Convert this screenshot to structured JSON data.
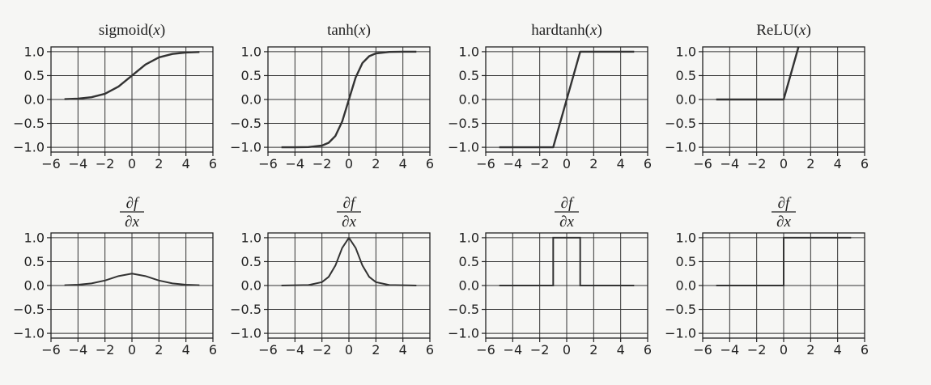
{
  "chart_data": [
    {
      "type": "line",
      "title": "sigmoid(x)",
      "title_fn": "sigmoid",
      "title_arg": "x",
      "xlim": [
        -6,
        6
      ],
      "ylim": [
        -1.1,
        1.1
      ],
      "grid": true,
      "xticks": [
        "−6",
        "−4",
        "−2",
        "0",
        "2",
        "4",
        "6"
      ],
      "yticks": [
        "1.0",
        "0.5",
        "0.0",
        "−0.5",
        "−1.0"
      ],
      "series": [
        {
          "x": [
            -5,
            -4,
            -3,
            -2,
            -1,
            0,
            1,
            2,
            3,
            4,
            5
          ],
          "y": [
            0.007,
            0.018,
            0.047,
            0.119,
            0.269,
            0.5,
            0.731,
            0.881,
            0.953,
            0.982,
            0.993
          ]
        }
      ]
    },
    {
      "type": "line",
      "title": "tanh(x)",
      "title_fn": "tanh",
      "title_arg": "x",
      "xlim": [
        -6,
        6
      ],
      "ylim": [
        -1.1,
        1.1
      ],
      "grid": true,
      "xticks": [
        "−6",
        "−4",
        "−2",
        "0",
        "2",
        "4",
        "6"
      ],
      "yticks": [
        "1.0",
        "0.5",
        "0.0",
        "−0.5",
        "−1.0"
      ],
      "series": [
        {
          "x": [
            -5,
            -4,
            -3,
            -2,
            -1.5,
            -1,
            -0.5,
            0,
            0.5,
            1,
            1.5,
            2,
            3,
            4,
            5
          ],
          "y": [
            -1.0,
            -0.999,
            -0.995,
            -0.964,
            -0.905,
            -0.762,
            -0.462,
            0,
            0.462,
            0.762,
            0.905,
            0.964,
            0.995,
            0.999,
            1.0
          ]
        }
      ]
    },
    {
      "type": "line",
      "title": "hardtanh(x)",
      "title_fn": "hardtanh",
      "title_arg": "x",
      "xlim": [
        -6,
        6
      ],
      "ylim": [
        -1.1,
        1.1
      ],
      "grid": true,
      "xticks": [
        "−6",
        "−4",
        "−2",
        "0",
        "2",
        "4",
        "6"
      ],
      "yticks": [
        "1.0",
        "0.5",
        "0.0",
        "−0.5",
        "−1.0"
      ],
      "series": [
        {
          "x": [
            -5,
            -1,
            1,
            5
          ],
          "y": [
            -1,
            -1,
            1,
            1
          ]
        }
      ]
    },
    {
      "type": "line",
      "title": "ReLU(x)",
      "title_fn": "ReLU",
      "title_arg": "x",
      "xlim": [
        -6,
        6
      ],
      "ylim": [
        -1.1,
        1.1
      ],
      "grid": true,
      "xticks": [
        "−6",
        "−4",
        "−2",
        "0",
        "2",
        "4",
        "6"
      ],
      "yticks": [
        "1.0",
        "0.5",
        "0.0",
        "−0.5",
        "−1.0"
      ],
      "series": [
        {
          "x": [
            -5,
            0,
            1.1
          ],
          "y": [
            0,
            0,
            1.1
          ]
        }
      ]
    },
    {
      "type": "line",
      "title": "∂f/∂x",
      "title_num": "∂f",
      "title_den": "∂x",
      "xlim": [
        -6,
        6
      ],
      "ylim": [
        -1.1,
        1.1
      ],
      "grid": true,
      "xticks": [
        "−6",
        "−4",
        "−2",
        "0",
        "2",
        "4",
        "6"
      ],
      "yticks": [
        "1.0",
        "0.5",
        "0.0",
        "−0.5",
        "−1.0"
      ],
      "series": [
        {
          "x": [
            -5,
            -4,
            -3,
            -2,
            -1,
            0,
            1,
            2,
            3,
            4,
            5
          ],
          "y": [
            0.007,
            0.018,
            0.045,
            0.105,
            0.197,
            0.25,
            0.197,
            0.105,
            0.045,
            0.018,
            0.007
          ]
        }
      ]
    },
    {
      "type": "line",
      "title": "∂f/∂x",
      "title_num": "∂f",
      "title_den": "∂x",
      "xlim": [
        -6,
        6
      ],
      "ylim": [
        -1.1,
        1.1
      ],
      "grid": true,
      "xticks": [
        "−6",
        "−4",
        "−2",
        "0",
        "2",
        "4",
        "6"
      ],
      "yticks": [
        "1.0",
        "0.5",
        "0.0",
        "−0.5",
        "−1.0"
      ],
      "series": [
        {
          "x": [
            -5,
            -3,
            -2,
            -1.5,
            -1,
            -0.5,
            0,
            0.5,
            1,
            1.5,
            2,
            3,
            5
          ],
          "y": [
            0,
            0.01,
            0.071,
            0.181,
            0.42,
            0.786,
            1.0,
            0.786,
            0.42,
            0.181,
            0.071,
            0.01,
            0
          ]
        }
      ]
    },
    {
      "type": "line",
      "title": "∂f/∂x",
      "title_num": "∂f",
      "title_den": "∂x",
      "xlim": [
        -6,
        6
      ],
      "ylim": [
        -1.1,
        1.1
      ],
      "grid": true,
      "xticks": [
        "−6",
        "−4",
        "−2",
        "0",
        "2",
        "4",
        "6"
      ],
      "yticks": [
        "1.0",
        "0.5",
        "0.0",
        "−0.5",
        "−1.0"
      ],
      "series": [
        {
          "x": [
            -5,
            -1,
            -1,
            1,
            1,
            5
          ],
          "y": [
            0,
            0,
            1,
            1,
            0,
            0
          ]
        }
      ]
    },
    {
      "type": "line",
      "title": "∂f/∂x",
      "title_num": "∂f",
      "title_den": "∂x",
      "xlim": [
        -6,
        6
      ],
      "ylim": [
        -1.1,
        1.1
      ],
      "grid": true,
      "xticks": [
        "−6",
        "−4",
        "−2",
        "0",
        "2",
        "4",
        "6"
      ],
      "yticks": [
        "1.0",
        "0.5",
        "0.0",
        "−0.5",
        "−1.0"
      ],
      "series": [
        {
          "x": [
            -5,
            0,
            0,
            5
          ],
          "y": [
            0,
            0,
            1,
            1
          ]
        }
      ]
    }
  ]
}
